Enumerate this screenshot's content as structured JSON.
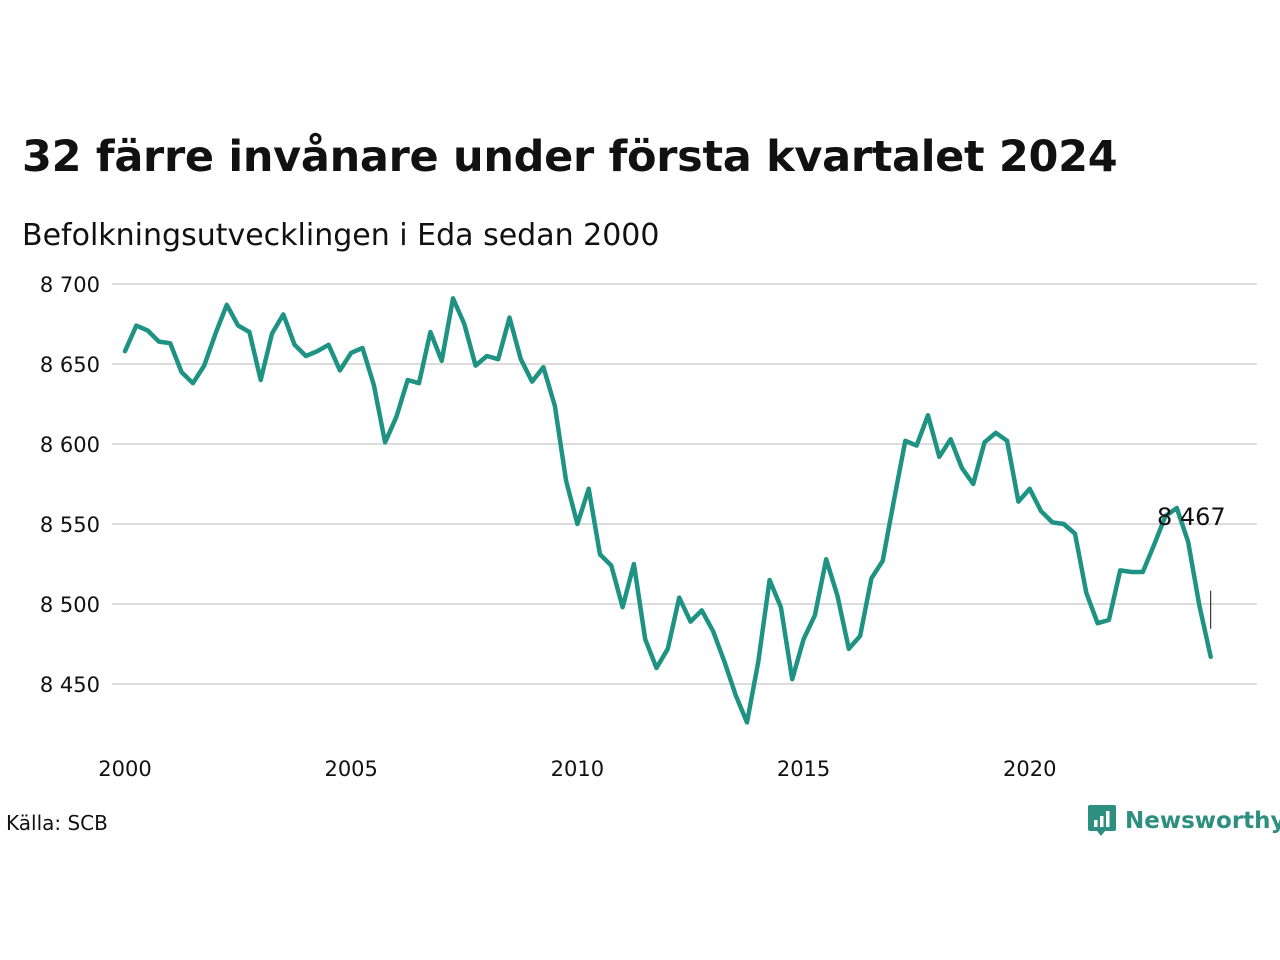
{
  "header": {
    "title": "32 färre invånare under första kvartalet 2024",
    "subtitle": "Befolkningsutvecklingen i Eda sedan 2000"
  },
  "footer": {
    "source": "Källa: SCB",
    "brand": "Newsworthy",
    "brand_icon": "newsworthy-logo-icon"
  },
  "colors": {
    "line": "#1f9383",
    "grid": "#dddddd",
    "brand": "#2d8f7f"
  },
  "chart_data": {
    "type": "line",
    "title": "32 färre invånare under första kvartalet 2024",
    "subtitle": "Befolkningsutvecklingen i Eda sedan 2000",
    "xlabel": "",
    "ylabel": "",
    "x_ticks": [
      "2000",
      "2005",
      "2010",
      "2015",
      "2020"
    ],
    "y_ticks": [
      "8 450",
      "8 500",
      "8 550",
      "8 600",
      "8 650",
      "8 700"
    ],
    "y_tick_values": [
      8450,
      8500,
      8550,
      8600,
      8650,
      8700
    ],
    "xlim": [
      2000,
      2024.25
    ],
    "ylim": [
      8425,
      8700
    ],
    "grid": true,
    "legend": "none",
    "end_label": "8 467",
    "series": [
      {
        "x": [
          2000.0,
          2000.25,
          2000.5,
          2000.75,
          2001.0,
          2001.25,
          2001.5,
          2001.75,
          2002.0,
          2002.25,
          2002.5,
          2002.75,
          2003.0,
          2003.25,
          2003.5,
          2003.75,
          2004.0,
          2004.25,
          2004.5,
          2004.75,
          2005.0,
          2005.25,
          2005.5,
          2005.75,
          2006.0,
          2006.25,
          2006.5,
          2006.75,
          2007.0,
          2007.25,
          2007.5,
          2007.75,
          2008.0,
          2008.25,
          2008.5,
          2008.75,
          2009.0,
          2009.25,
          2009.5,
          2009.75,
          2010.0,
          2010.25,
          2010.5,
          2010.75,
          2011.0,
          2011.25,
          2011.5,
          2011.75,
          2012.0,
          2012.25,
          2012.5,
          2012.75,
          2013.0,
          2013.25,
          2013.5,
          2013.75,
          2014.0,
          2014.25,
          2014.5,
          2014.75,
          2015.0,
          2015.25,
          2015.5,
          2015.75,
          2016.0,
          2016.25,
          2016.5,
          2016.75,
          2017.0,
          2017.25,
          2017.5,
          2017.75,
          2018.0,
          2018.25,
          2018.5,
          2018.75,
          2019.0,
          2019.25,
          2019.5,
          2019.75,
          2020.0,
          2020.25,
          2020.5,
          2020.75,
          2021.0,
          2021.25,
          2021.5,
          2021.75,
          2022.0,
          2022.25,
          2022.5,
          2022.75,
          2023.0,
          2023.25,
          2023.5,
          2023.75,
          2024.0
        ],
        "values": [
          8658,
          8674,
          8671,
          8664,
          8663,
          8645,
          8638,
          8649,
          8669,
          8687,
          8674,
          8670,
          8640,
          8669,
          8681,
          8662,
          8655,
          8658,
          8662,
          8646,
          8657,
          8660,
          8637,
          8601,
          8617,
          8640,
          8638,
          8670,
          8652,
          8691,
          8675,
          8649,
          8655,
          8653,
          8679,
          8653,
          8639,
          8648,
          8624,
          8577,
          8550,
          8572,
          8531,
          8524,
          8498,
          8525,
          8478,
          8460,
          8472,
          8504,
          8489,
          8496,
          8483,
          8464,
          8443,
          8426,
          8464,
          8515,
          8498,
          8453,
          8478,
          8493,
          8528,
          8505,
          8472,
          8480,
          8516,
          8527,
          8565,
          8602,
          8599,
          8618,
          8592,
          8603,
          8585,
          8575,
          8601,
          8607,
          8602,
          8564,
          8572,
          8558,
          8551,
          8550,
          8544,
          8507,
          8488,
          8490,
          8521,
          8520,
          8520,
          8537,
          8555,
          8560,
          8539,
          8499,
          8467
        ]
      }
    ]
  }
}
